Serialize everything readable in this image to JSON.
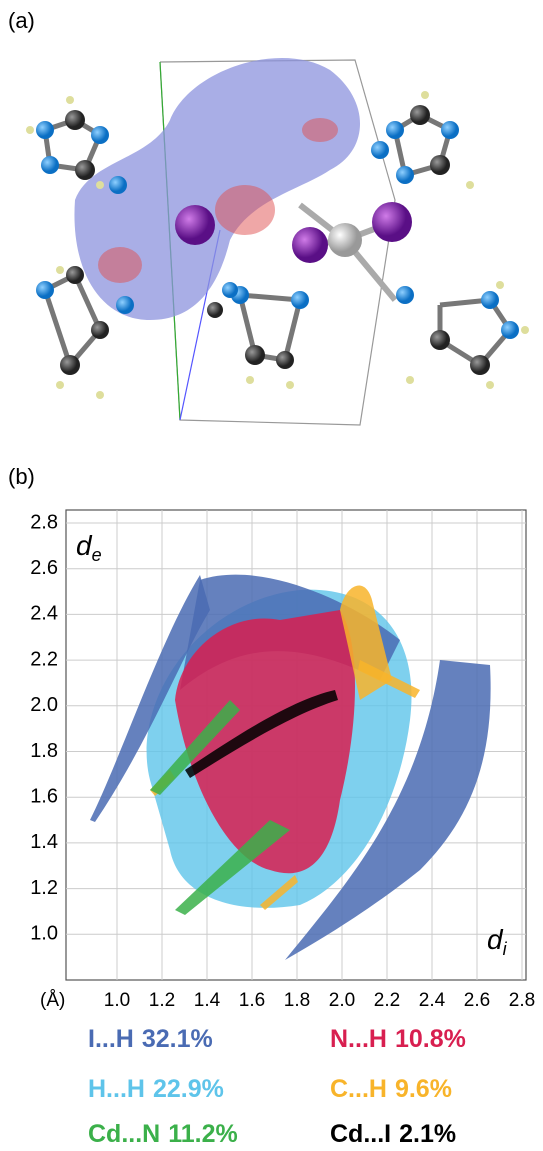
{
  "panel_a": {
    "label": "(a)"
  },
  "chart_data": {
    "type": "fingerprint",
    "panel_label": "(b)",
    "xlabel_main": "d",
    "xlabel_sub": "i",
    "ylabel_main": "d",
    "ylabel_sub": "e",
    "x_unit": "(Å)",
    "xlim": [
      0.8,
      2.8
    ],
    "ylim": [
      0.8,
      2.8
    ],
    "xticks": [
      {
        "value": 1,
        "label": "1.0"
      },
      {
        "value": 1.2,
        "label": "1.2"
      },
      {
        "value": 1.4,
        "label": "1.4"
      },
      {
        "value": 1.6,
        "label": "1.6"
      },
      {
        "value": 1.8,
        "label": "1.8"
      },
      {
        "value": 2,
        "label": "2.0"
      },
      {
        "value": 2.2,
        "label": "2.2"
      },
      {
        "value": 2.4,
        "label": "2.4"
      },
      {
        "value": 2.6,
        "label": "2.6"
      },
      {
        "value": 2.8,
        "label": "2.8"
      }
    ],
    "yticks": [
      {
        "value": 1,
        "label": "1.0"
      },
      {
        "value": 1.2,
        "label": "1.2"
      },
      {
        "value": 1.4,
        "label": "1.4"
      },
      {
        "value": 1.6,
        "label": "1.6"
      },
      {
        "value": 1.8,
        "label": "1.8"
      },
      {
        "value": 2,
        "label": "2.0"
      },
      {
        "value": 2.2,
        "label": "2.2"
      },
      {
        "value": 2.4,
        "label": "2.4"
      },
      {
        "value": 2.6,
        "label": "2.6"
      },
      {
        "value": 2.8,
        "label": "2.8"
      }
    ],
    "grid": true,
    "series": [
      {
        "name": "I...H",
        "color": "#4a6bb3",
        "value": 32.1,
        "value_label": "32.1%"
      },
      {
        "name": "N...H",
        "color": "#d81f50",
        "value": 10.8,
        "value_label": "10.8%"
      },
      {
        "name": "H...H",
        "color": "#5ec4ea",
        "value": 22.9,
        "value_label": "22.9%"
      },
      {
        "name": "C...H",
        "color": "#f8b42a",
        "value": 9.6,
        "value_label": "9.6%"
      },
      {
        "name": "Cd...N",
        "color": "#3bb04a",
        "value": 11.2,
        "value_label": "11.2%"
      },
      {
        "name": "Cd...I",
        "color": "#000000",
        "value": 2.1,
        "value_label": "2.1%"
      }
    ]
  }
}
